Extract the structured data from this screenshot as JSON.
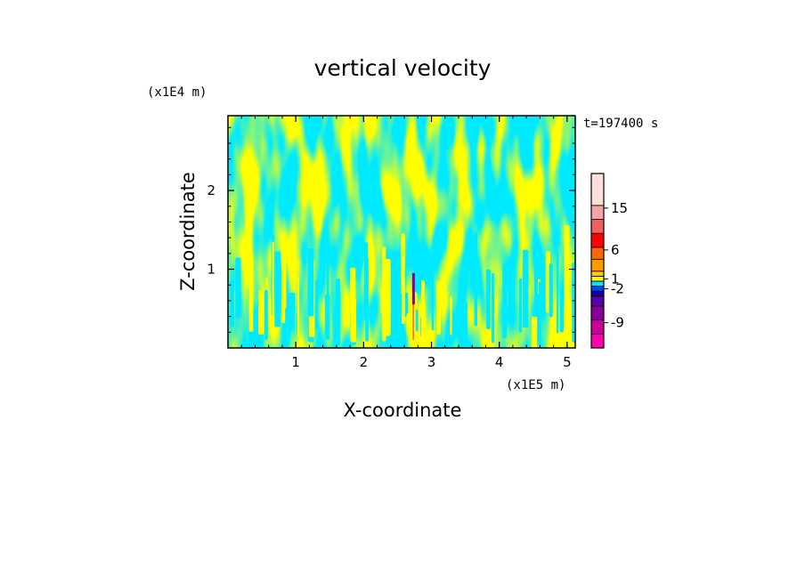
{
  "chart_data": {
    "type": "heatmap",
    "title": "vertical velocity",
    "xlabel": "X-coordinate",
    "ylabel": "Z-coordinate",
    "x_unit": "(x1E5 m)",
    "y_unit": "(x1E4 m)",
    "time_label": "t=197400 s",
    "x_ticks": [
      "1",
      "2",
      "3",
      "4",
      "5"
    ],
    "y_ticks": [
      "1",
      "2"
    ],
    "xlim": [
      0,
      5.12
    ],
    "ylim": [
      0,
      2.95
    ],
    "colorbar": {
      "tick_labels": [
        "15",
        "6",
        "1",
        "-2",
        "-9"
      ],
      "levels": [
        {
          "color": "#ff00aa"
        },
        {
          "color": "#cc0099"
        },
        {
          "color": "#880099"
        },
        {
          "color": "#5500aa"
        },
        {
          "color": "#1a00aa"
        },
        {
          "color": "#0044ff"
        },
        {
          "color": "#00e6ff"
        },
        {
          "color": "#ffff00"
        },
        {
          "color": "#ffcc00"
        },
        {
          "color": "#ff9900"
        },
        {
          "color": "#ff6600"
        },
        {
          "color": "#ff0000"
        },
        {
          "color": "#f06060"
        },
        {
          "color": "#f4a5a5"
        },
        {
          "color": "#fde0dc"
        }
      ]
    },
    "field_colors": {
      "negative": "#00eaff",
      "positive": "#ffff00"
    },
    "grid": false
  }
}
